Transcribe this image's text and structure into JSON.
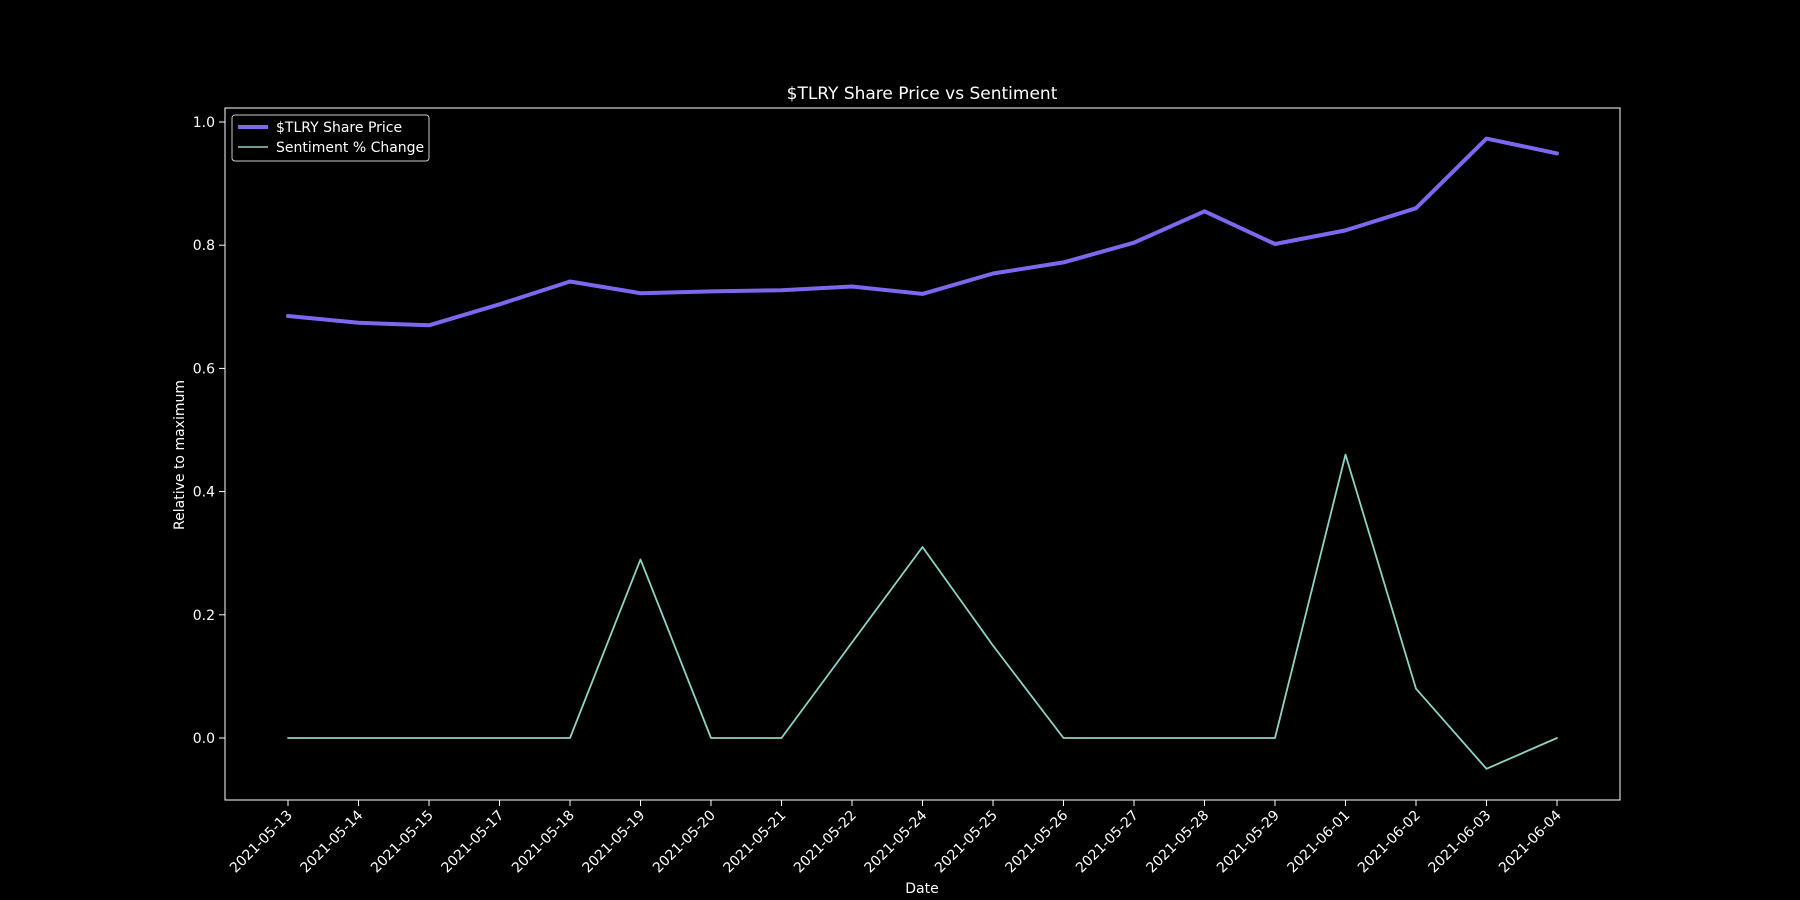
{
  "chart_data": {
    "type": "line",
    "title": "$TLRY Share Price vs Sentiment",
    "xlabel": "Date",
    "ylabel": "Relative to maximum",
    "categories": [
      "2021-05-13",
      "2021-05-14",
      "2021-05-15",
      "2021-05-17",
      "2021-05-18",
      "2021-05-19",
      "2021-05-20",
      "2021-05-21",
      "2021-05-22",
      "2021-05-24",
      "2021-05-25",
      "2021-05-26",
      "2021-05-27",
      "2021-05-28",
      "2021-05-29",
      "2021-06-01",
      "2021-06-02",
      "2021-06-03",
      "2021-06-04"
    ],
    "yticks": [
      "0.0",
      "0.2",
      "0.4",
      "0.6",
      "0.8",
      "1.0"
    ],
    "ylim": [
      -0.1,
      1.025
    ],
    "grid": false,
    "legend_position": "top-left",
    "series": [
      {
        "name": "$TLRY Share Price",
        "color": "#7b68ee",
        "values": [
          0.685,
          0.674,
          0.67,
          0.704,
          0.741,
          0.722,
          0.725,
          0.727,
          0.733,
          0.721,
          0.754,
          0.772,
          0.804,
          0.855,
          0.802,
          0.824,
          0.86,
          0.973,
          0.949
        ]
      },
      {
        "name": "Sentiment % Change",
        "color": "#8dd3c7",
        "values": [
          0.0,
          0.0,
          0.0,
          0.0,
          0.0,
          0.29,
          0.0,
          0.0,
          0.155,
          0.31,
          0.15,
          0.0,
          0.0,
          0.0,
          0.0,
          0.46,
          0.08,
          -0.05,
          0.0
        ]
      }
    ]
  }
}
